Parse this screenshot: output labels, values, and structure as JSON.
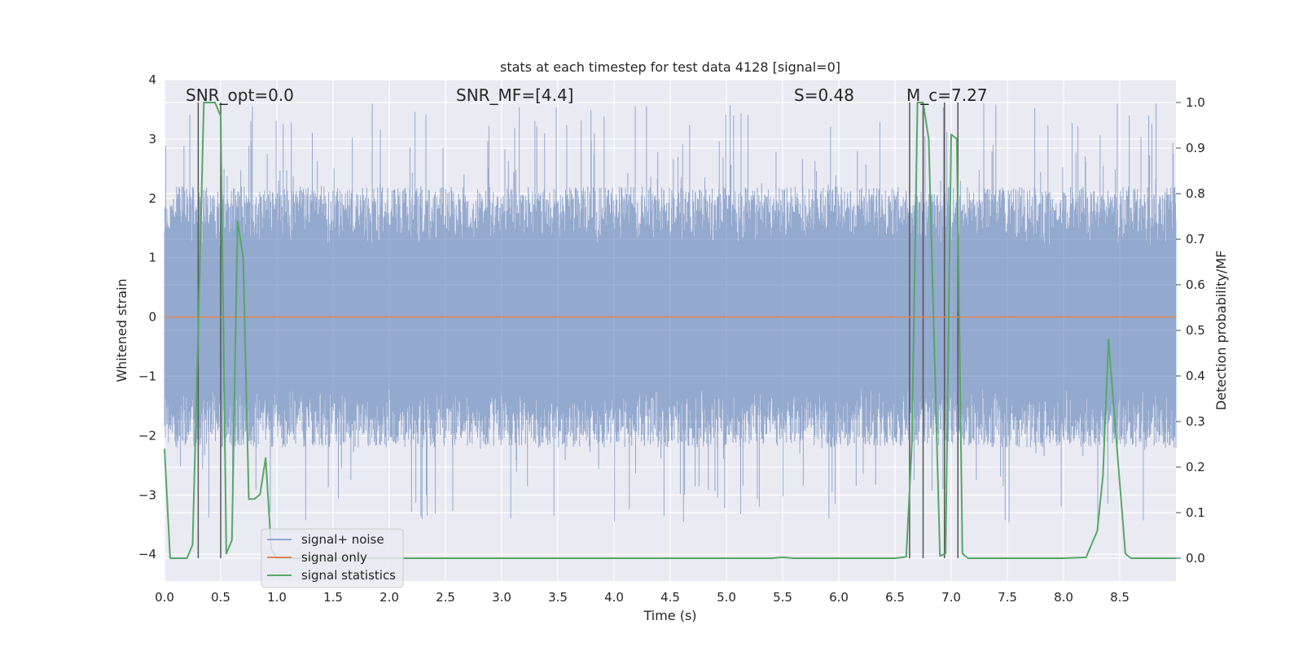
{
  "chart_data": {
    "type": "line",
    "title": "stats at each timestep for test data 4128 [signal=0]",
    "xlabel": "Time (s)",
    "ylabel": "Whitened strain",
    "y2label": "Detection probability/MF",
    "xlim": [
      0,
      9.0
    ],
    "ylim": [
      -4.45,
      4.0
    ],
    "y2lim": [
      -0.05,
      1.05
    ],
    "xticks": [
      "0.0",
      "0.5",
      "1.0",
      "1.5",
      "2.0",
      "2.5",
      "3.0",
      "3.5",
      "4.0",
      "4.5",
      "5.0",
      "5.5",
      "6.0",
      "6.5",
      "7.0",
      "7.5",
      "8.0",
      "8.5"
    ],
    "yticks": [
      "4",
      "3",
      "2",
      "1",
      "0",
      "−1",
      "−2",
      "−3",
      "−4"
    ],
    "y2ticks": [
      "1.0",
      "0.9",
      "0.8",
      "0.7",
      "0.6",
      "0.5",
      "0.4",
      "0.3",
      "0.2",
      "0.1",
      "0.0"
    ],
    "grid": true,
    "legend_position": "lower-left",
    "annotations": {
      "snr_opt": "SNR_opt=0.0",
      "snr_mf": "SNR_MF=[4.4]",
      "s_stat": "S=0.48",
      "mc": "M_c=7.27"
    },
    "vertical_markers_x": [
      0.3,
      0.5,
      6.63,
      6.75,
      6.94,
      7.06
    ],
    "series": [
      {
        "name": "signal+ noise",
        "color": "#4c72b0",
        "description_stats": {
          "x_start": 0.0,
          "x_end": 9.0,
          "core_low": -1.5,
          "core_high": 1.5,
          "peak_high": 3.6,
          "peak_low": -3.7
        }
      },
      {
        "name": "signal only",
        "color": "#dd8452",
        "x": [
          0.0,
          9.0
        ],
        "y": [
          0.0,
          0.0
        ]
      },
      {
        "name": "signal statistics",
        "color": "#55a868",
        "axis": "right",
        "x": [
          0.0,
          0.05,
          0.1,
          0.2,
          0.25,
          0.3,
          0.35,
          0.45,
          0.5,
          0.55,
          0.6,
          0.65,
          0.7,
          0.75,
          0.8,
          0.85,
          0.9,
          0.95,
          1.0,
          1.5,
          2.0,
          2.5,
          3.0,
          3.5,
          4.0,
          4.5,
          5.0,
          5.4,
          5.5,
          5.6,
          6.0,
          6.5,
          6.6,
          6.65,
          6.7,
          6.75,
          6.8,
          6.9,
          6.95,
          7.0,
          7.05,
          7.1,
          7.15,
          7.2,
          7.5,
          8.0,
          8.2,
          8.3,
          8.35,
          8.4,
          8.45,
          8.55,
          8.6,
          8.7,
          9.0
        ],
        "y": [
          0.24,
          0.0,
          0.0,
          0.0,
          0.03,
          0.5,
          1.0,
          1.0,
          0.97,
          0.01,
          0.04,
          0.74,
          0.66,
          0.13,
          0.13,
          0.14,
          0.22,
          0.02,
          0.0,
          0.0,
          0.0,
          0.0,
          0.0,
          0.0,
          0.0,
          0.0,
          0.0,
          0.0,
          0.002,
          0.0,
          0.0,
          0.0,
          0.003,
          0.25,
          1.0,
          1.0,
          0.92,
          0.005,
          0.01,
          0.93,
          0.92,
          0.01,
          0.0,
          0.0,
          0.0,
          0.0,
          0.002,
          0.06,
          0.18,
          0.48,
          0.32,
          0.01,
          0.0,
          0.0,
          0.0
        ]
      }
    ]
  }
}
